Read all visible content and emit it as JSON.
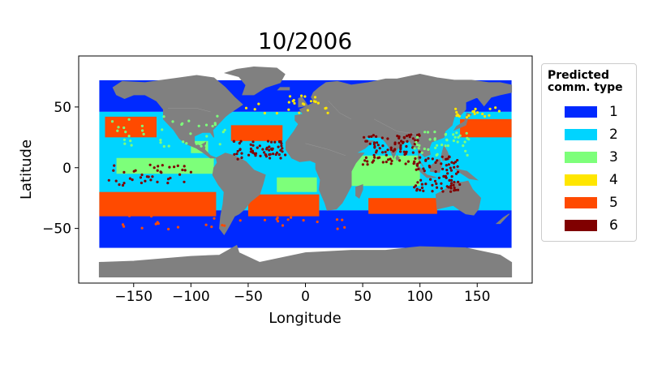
{
  "chart_data": {
    "type": "scatter",
    "title": "10/2006",
    "xlabel": "Longitude",
    "ylabel": "Latitude",
    "xlim": [
      -198,
      198
    ],
    "ylim": [
      -95,
      92
    ],
    "xticks": [
      -150,
      -100,
      -50,
      0,
      50,
      100,
      150
    ],
    "yticks": [
      -50,
      0,
      50
    ],
    "xtick_labels": [
      "−150",
      "−100",
      "−50",
      "0",
      "50",
      "100",
      "150"
    ],
    "ytick_labels": [
      "−50",
      "0",
      "50"
    ],
    "grid": false,
    "legend": {
      "title_line1": "Predicted",
      "title_line2": "comm. type",
      "placement": "outside-right",
      "entries": [
        {
          "label": "1",
          "color": "#0029ff"
        },
        {
          "label": "2",
          "color": "#00d4ff"
        },
        {
          "label": "3",
          "color": "#7dff7a"
        },
        {
          "label": "4",
          "color": "#ffe600"
        },
        {
          "label": "5",
          "color": "#ff4a00"
        },
        {
          "label": "6",
          "color": "#800000"
        }
      ]
    },
    "land_color": "#808080"
  }
}
